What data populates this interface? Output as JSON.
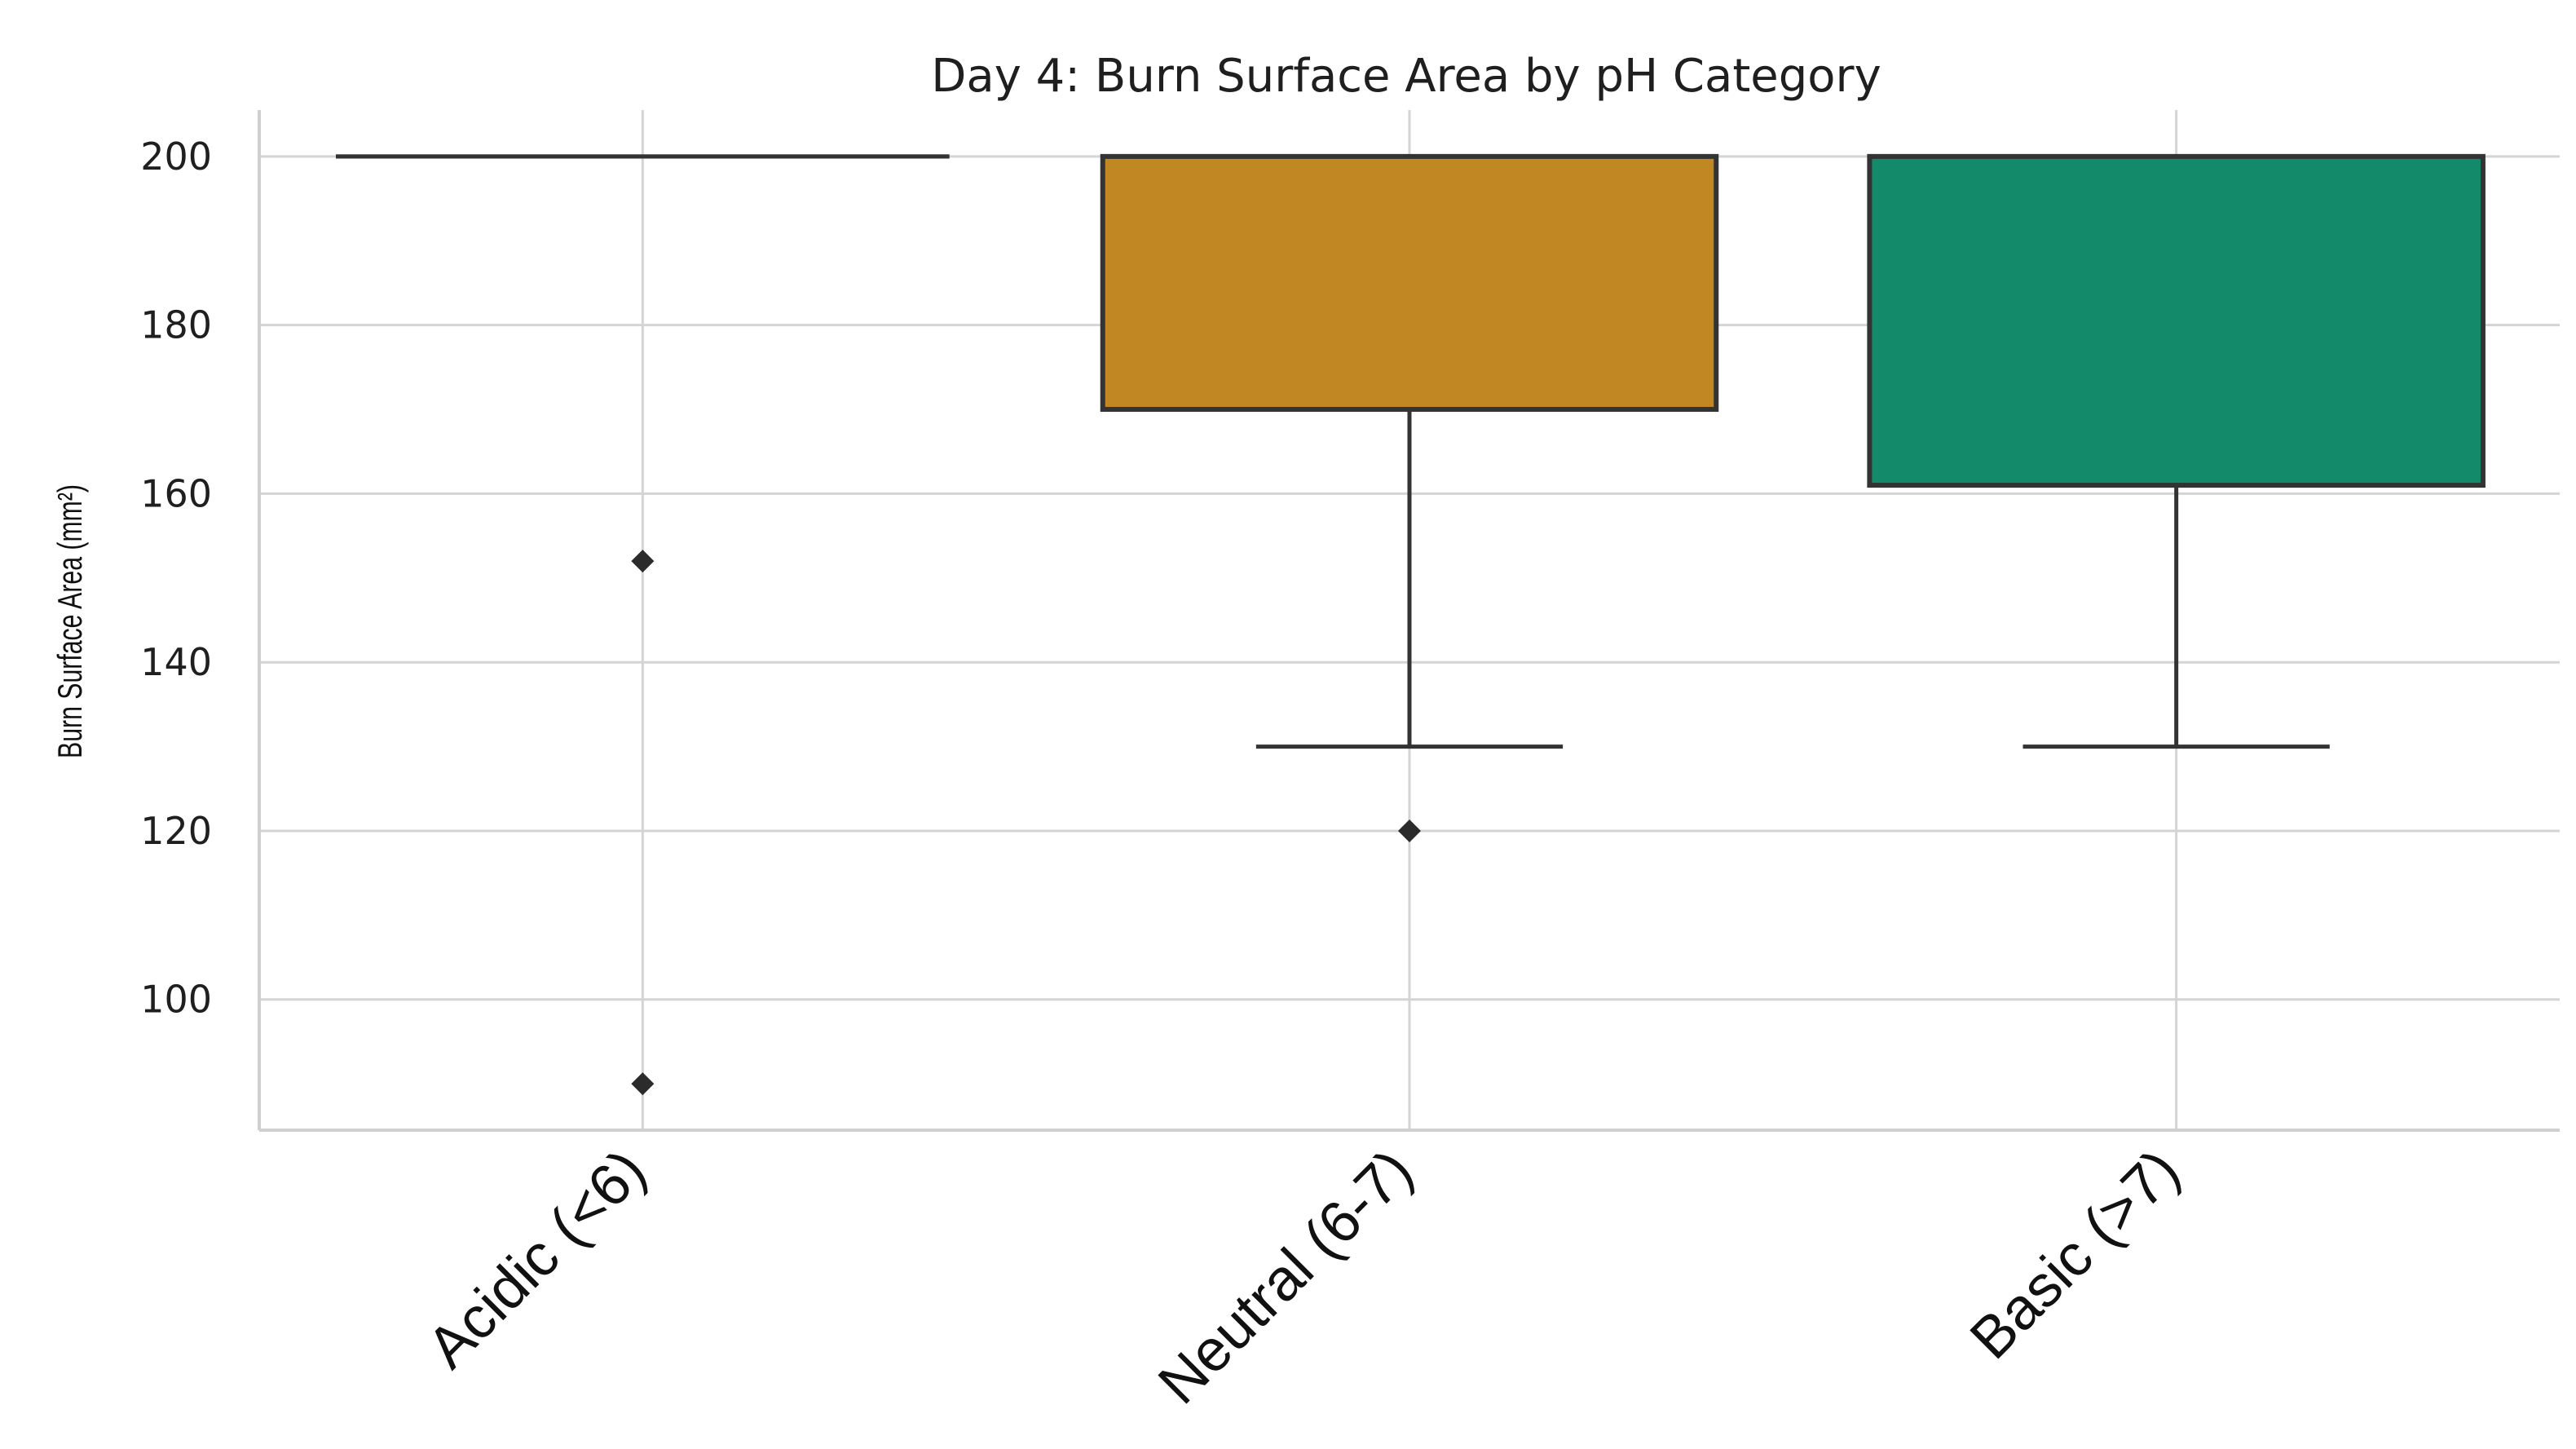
{
  "chart_data": {
    "type": "box",
    "title": "Day 4: Burn Surface Area by pH Category",
    "xlabel": "",
    "ylabel": "Burn Surface Area (mm²)",
    "ylim": [
      84.5,
      205.5
    ],
    "yticks": [
      100,
      120,
      140,
      160,
      180,
      200
    ],
    "grid": true,
    "categories": [
      "Acidic (<6)",
      "Neutral (6-7)",
      "Basic (>7)"
    ],
    "boxes": [
      {
        "category": "Acidic (<6)",
        "q1": 200,
        "median": 200,
        "q3": 200,
        "whisker_low": 200,
        "whisker_high": 200,
        "outliers": [
          152,
          90
        ],
        "color": "#e8e8e8"
      },
      {
        "category": "Neutral (6-7)",
        "q1": 170,
        "median": 200,
        "q3": 200,
        "whisker_low": 130,
        "whisker_high": 200,
        "outliers": [
          120
        ],
        "color": "#c18722"
      },
      {
        "category": "Basic (>7)",
        "q1": 161,
        "median": 200,
        "q3": 200,
        "whisker_low": 130,
        "whisker_high": 200,
        "outliers": [],
        "color": "#138a69"
      }
    ]
  }
}
